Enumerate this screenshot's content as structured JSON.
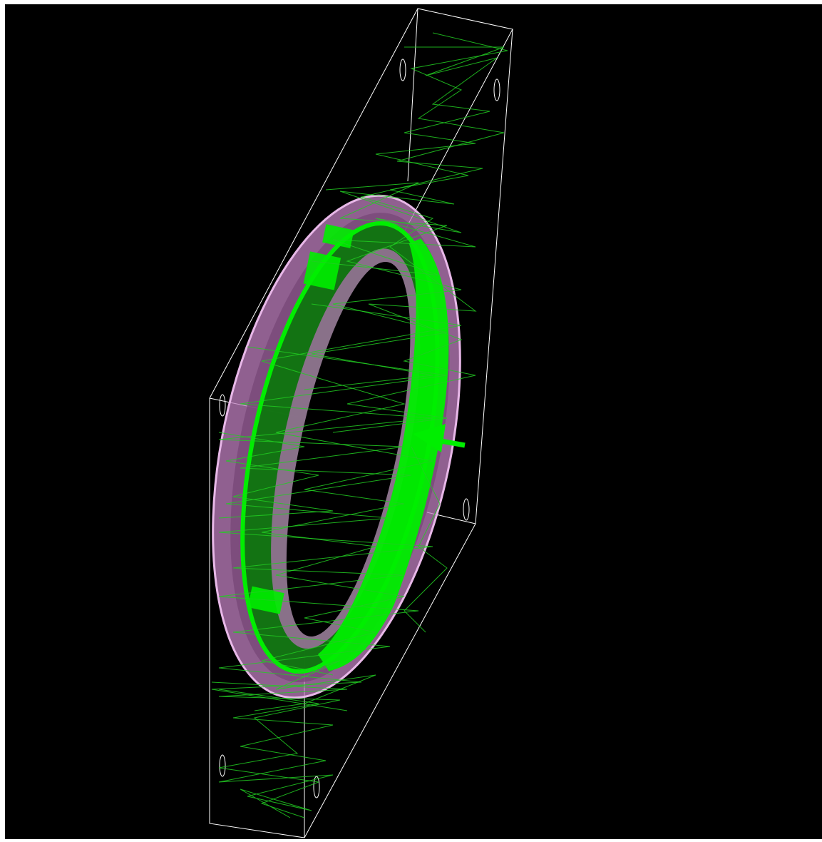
{
  "colors": {
    "background": "#000000",
    "frame": "#ffffff",
    "ring_outer": "#d9a0d9",
    "ring_inner_shadow": "#8a5a8a",
    "scintillator": "#00ee00",
    "scintillator_dark": "#008800",
    "tracks": "#22cc22",
    "arrow": "#00ee00"
  },
  "icons": {
    "beam_arrow": "arrow-left-icon"
  }
}
